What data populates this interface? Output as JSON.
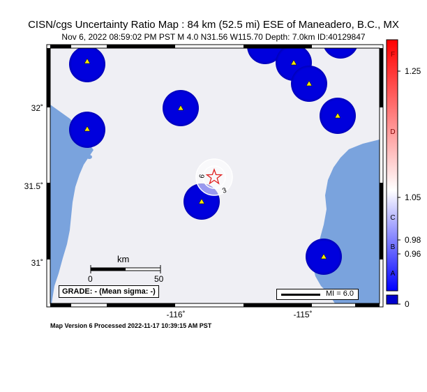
{
  "header": {
    "title": "CISN/cgs Uncertainty Ratio Map : 84 km (52.5 mi) ESE of Maneadero, B.C., MX",
    "subtitle": "Nov  6, 2022 08:59:02 PM PST    M 4.0    N31.56 W115.70    Depth: 7.0km    ID:40129847"
  },
  "map": {
    "lat_ticks": [
      "32˚",
      "31.5˚",
      "31˚"
    ],
    "lon_ticks": [
      "-116˚",
      "-115˚"
    ],
    "contour_labels": [
      "6",
      "3"
    ],
    "scale_bar": {
      "unit": "km",
      "start": "0",
      "end": "50"
    },
    "grade_box": "GRADE: - (Mean sigma: -)",
    "mi_box": "MI = 6.0",
    "colors": {
      "land": "#efeff4",
      "water": "#7aa3dd",
      "station_high_uncertainty": "#0000cc",
      "station_marker": "#f2e600",
      "epicenter": "#e02020"
    }
  },
  "colorbar": {
    "letters": [
      "F",
      "D",
      "C",
      "B",
      "A"
    ],
    "values": [
      "1.25",
      "1.05",
      "0.98",
      "0.96",
      "0"
    ],
    "colors": {
      "top": "#ff0000",
      "middle": "#ffffff",
      "bottom": "#0000ff"
    }
  },
  "footer": {
    "processed": "Map Version 6 Processed 2022-11-17 10:39:15 AM PST"
  }
}
